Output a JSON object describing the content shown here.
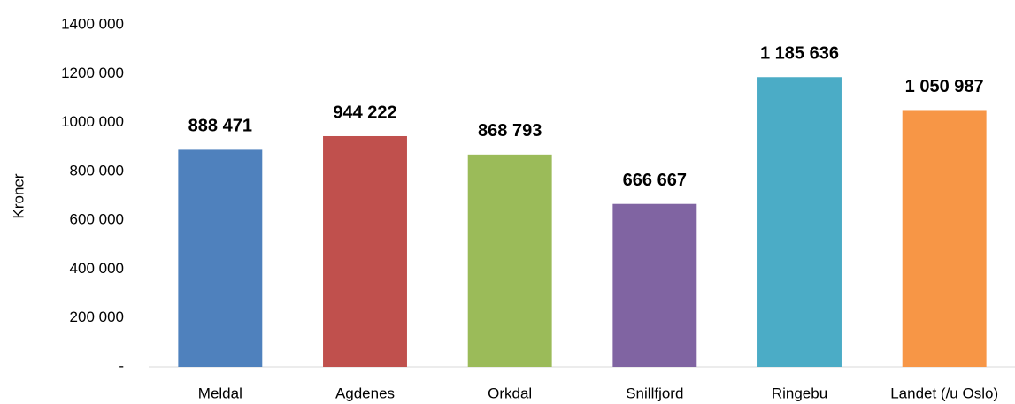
{
  "chart_data": {
    "type": "bar",
    "y_axis_label": "Kroner",
    "categories": [
      "Meldal",
      "Agdenes",
      "Orkdal",
      "Snillfjord",
      "Ringebu",
      "Landet (/u Oslo)"
    ],
    "values": [
      888471,
      944222,
      868793,
      666667,
      1185636,
      1050987
    ],
    "value_labels": [
      "888 471",
      "944 222",
      "868 793",
      "666 667",
      "1 185 636",
      "1 050 987"
    ],
    "colors": [
      "#4f81bd",
      "#c0504d",
      "#9bbb59",
      "#8064a2",
      "#4bacc6",
      "#f79646"
    ],
    "ylim": [
      0,
      1400000
    ],
    "yticks": [
      {
        "value": 0,
        "label": "-"
      },
      {
        "value": 200000,
        "label": "200 000"
      },
      {
        "value": 400000,
        "label": "400 000"
      },
      {
        "value": 600000,
        "label": "600 000"
      },
      {
        "value": 800000,
        "label": "800 000"
      },
      {
        "value": 1000000,
        "label": "1000 000"
      },
      {
        "value": 1200000,
        "label": "1200 000"
      },
      {
        "value": 1400000,
        "label": "1400 000"
      }
    ],
    "grid": false
  }
}
